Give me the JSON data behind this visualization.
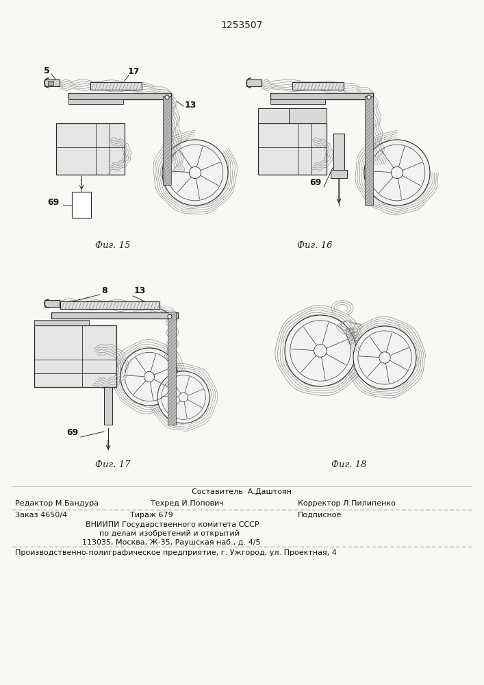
{
  "patent_number": "1253507",
  "bg": "#f8f8f5",
  "line_color": [
    50,
    50,
    50
  ],
  "figure_captions": [
    "Фиг. 15",
    "Фиг. 16",
    "Фиг. 17",
    "Фиг. 18"
  ],
  "footer": {
    "composer": "Составитель  А.Даштоян",
    "editor": "Редактор М.Бандура",
    "techred": "Техред И.Попович",
    "corrector": "Корректор Л.Пилипенко",
    "order": "Заказ 4650/4",
    "tirazh": "Тираж 679",
    "podpisnoe": "Подписное",
    "vniishi": "ВНИИПИ Государственного комитета СССР",
    "podelam": "по делам изобретений и открытий",
    "address": "113035, Москва, Ж-35, Раушская наб., д. 4/5",
    "printer": "Производственно-полиграфическое предприятие, г. Ужгород, ул. Проектная, 4"
  }
}
